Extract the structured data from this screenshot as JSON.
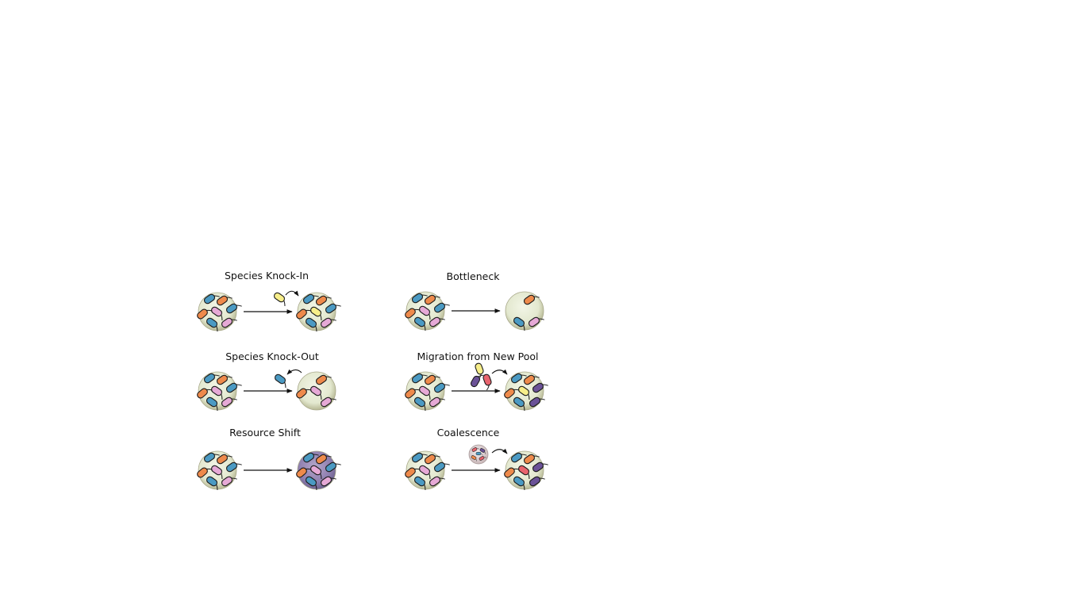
{
  "colors": {
    "blue": "#4b9ac3",
    "orange": "#ee8a4b",
    "pink": "#e6a9d6",
    "yellow": "#f7ee8a",
    "red": "#e8646e",
    "purple": "#6b5297",
    "community": "#e7ecd6",
    "community_edge": "#b9b898",
    "resource": "#9a87b8"
  },
  "panels": [
    {
      "id": "knock-in",
      "title": "Species Knock-In"
    },
    {
      "id": "bottleneck",
      "title": "Bottleneck"
    },
    {
      "id": "knock-out",
      "title": "Species Knock-Out"
    },
    {
      "id": "migration",
      "title": "Migration from New Pool"
    },
    {
      "id": "resource-shift",
      "title": "Resource Shift"
    },
    {
      "id": "coalescence",
      "title": "Coalescence"
    }
  ]
}
